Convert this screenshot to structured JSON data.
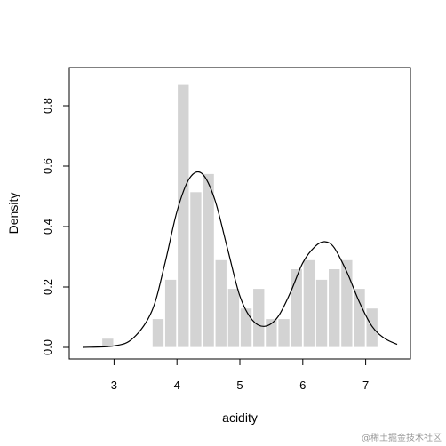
{
  "chart_data": {
    "type": "bar",
    "title": "",
    "xlabel": "acidity",
    "ylabel": "Density",
    "xlim": [
      2.5,
      7.5
    ],
    "ylim": [
      0,
      0.87
    ],
    "x_ticks": [
      "3",
      "4",
      "5",
      "6",
      "7"
    ],
    "y_ticks": [
      "0.0",
      "0.2",
      "0.4",
      "0.6",
      "0.8"
    ],
    "grid": false,
    "histogram": {
      "bin_width": 0.2,
      "bar_color": "#d3d3d3",
      "bins": [
        {
          "start": 2.8,
          "density": 0.03
        },
        {
          "start": 3.6,
          "density": 0.095
        },
        {
          "start": 3.8,
          "density": 0.225
        },
        {
          "start": 4.0,
          "density": 0.87
        },
        {
          "start": 4.2,
          "density": 0.515
        },
        {
          "start": 4.4,
          "density": 0.575
        },
        {
          "start": 4.6,
          "density": 0.29
        },
        {
          "start": 4.8,
          "density": 0.195
        },
        {
          "start": 5.0,
          "density": 0.13
        },
        {
          "start": 5.2,
          "density": 0.195
        },
        {
          "start": 5.4,
          "density": 0.095
        },
        {
          "start": 5.6,
          "density": 0.095
        },
        {
          "start": 5.8,
          "density": 0.26
        },
        {
          "start": 6.0,
          "density": 0.29
        },
        {
          "start": 6.2,
          "density": 0.225
        },
        {
          "start": 6.4,
          "density": 0.26
        },
        {
          "start": 6.6,
          "density": 0.29
        },
        {
          "start": 6.8,
          "density": 0.195
        },
        {
          "start": 7.0,
          "density": 0.13
        }
      ]
    },
    "density_curve": {
      "color": "#000000",
      "x": [
        2.5,
        3.0,
        3.3,
        3.6,
        3.8,
        4.0,
        4.2,
        4.4,
        4.6,
        4.8,
        5.0,
        5.2,
        5.4,
        5.6,
        5.8,
        6.0,
        6.2,
        6.35,
        6.5,
        6.7,
        6.9,
        7.1,
        7.3,
        7.5
      ],
      "y": [
        0.0,
        0.005,
        0.03,
        0.12,
        0.27,
        0.45,
        0.56,
        0.575,
        0.49,
        0.33,
        0.17,
        0.09,
        0.07,
        0.1,
        0.18,
        0.28,
        0.335,
        0.35,
        0.33,
        0.25,
        0.15,
        0.07,
        0.03,
        0.01
      ]
    }
  },
  "watermark": "@稀土掘金技术社区"
}
